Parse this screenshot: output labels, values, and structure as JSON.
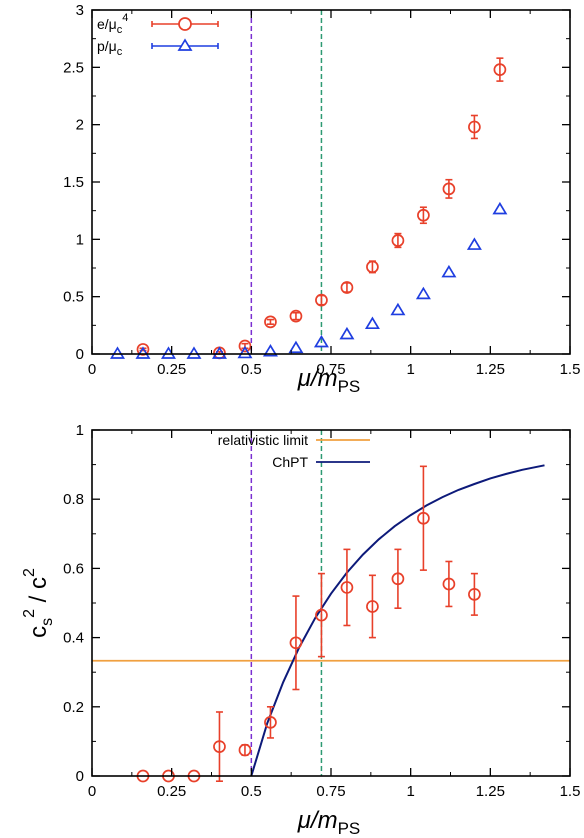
{
  "chart_data": [
    {
      "type": "scatter",
      "xlabel_main": "μ/m",
      "xlabel_sub": "PS",
      "ylabel": "",
      "xlim": [
        0,
        1.5
      ],
      "ylim": [
        0,
        3
      ],
      "xticks": [
        "0",
        "0.25",
        "0.5",
        "0.75",
        "1",
        "1.25",
        "1.5"
      ],
      "yticks": [
        "0",
        "0.5",
        "1",
        "1.5",
        "2",
        "2.5",
        "3"
      ],
      "vlines": [
        {
          "x": 0.5,
          "color": "#7b2fd1"
        },
        {
          "x": 0.72,
          "color": "#2e9a73"
        }
      ],
      "legend_position": "top-left",
      "series": [
        {
          "name": "e/μc4",
          "legend_main": "e/μ",
          "legend_sub": "c",
          "legend_sup": "4",
          "marker": "circle",
          "color": "#e8402a",
          "x": [
            0.16,
            0.4,
            0.48,
            0.56,
            0.64,
            0.72,
            0.8,
            0.88,
            0.96,
            1.04,
            1.12,
            1.2,
            1.28
          ],
          "y": [
            0.04,
            0.01,
            0.07,
            0.28,
            0.33,
            0.47,
            0.58,
            0.76,
            0.99,
            1.21,
            1.44,
            1.98,
            2.48
          ],
          "yerr": [
            0.01,
            0.01,
            0.02,
            0.02,
            0.03,
            0.04,
            0.04,
            0.05,
            0.06,
            0.07,
            0.08,
            0.1,
            0.1
          ]
        },
        {
          "name": "p/μc",
          "legend_main": "p/μ",
          "legend_sub": "c",
          "legend_sup": "",
          "marker": "triangle",
          "color": "#1f3ee0",
          "x": [
            0.08,
            0.16,
            0.24,
            0.32,
            0.4,
            0.48,
            0.56,
            0.64,
            0.72,
            0.8,
            0.88,
            0.96,
            1.04,
            1.12,
            1.2,
            1.28
          ],
          "y": [
            0.0,
            0.0,
            0.0,
            0.0,
            0.0,
            0.005,
            0.02,
            0.05,
            0.1,
            0.17,
            0.26,
            0.38,
            0.52,
            0.71,
            0.95,
            1.26
          ],
          "yerr": [
            0,
            0,
            0,
            0,
            0,
            0,
            0,
            0,
            0,
            0,
            0,
            0,
            0,
            0,
            0,
            0
          ]
        }
      ]
    },
    {
      "type": "scatter",
      "xlabel_main": "μ/m",
      "xlabel_sub": "PS",
      "ylabel_main": "c",
      "ylabel_sub": "s",
      "ylabel_rest": " / c",
      "xlim": [
        0,
        1.5
      ],
      "ylim": [
        0,
        1
      ],
      "xticks": [
        "0",
        "0.25",
        "0.5",
        "0.75",
        "1",
        "1.25",
        "1.5"
      ],
      "yticks": [
        "0",
        "0.2",
        "0.4",
        "0.6",
        "0.8",
        "1"
      ],
      "vlines": [
        {
          "x": 0.5,
          "color": "#7b2fd1"
        },
        {
          "x": 0.72,
          "color": "#2e9a73"
        }
      ],
      "legend_position": "top-left",
      "relativistic_limit": {
        "name": "relativistic limit",
        "y": 0.333,
        "color": "#f0a040"
      },
      "chpt": {
        "name": "ChPT",
        "color": "#0d1a7a",
        "x": [
          0.5,
          0.55,
          0.6,
          0.65,
          0.7,
          0.75,
          0.8,
          0.85,
          0.9,
          0.95,
          1.0,
          1.05,
          1.1,
          1.15,
          1.2,
          1.25,
          1.3,
          1.35,
          1.42
        ],
        "y": [
          0.0,
          0.153,
          0.271,
          0.371,
          0.456,
          0.527,
          0.588,
          0.64,
          0.684,
          0.722,
          0.754,
          0.782,
          0.806,
          0.827,
          0.844,
          0.86,
          0.873,
          0.885,
          0.898
        ]
      },
      "series": [
        {
          "name": "cs2",
          "marker": "circle",
          "color": "#e8402a",
          "x": [
            0.16,
            0.24,
            0.32,
            0.4,
            0.48,
            0.56,
            0.64,
            0.72,
            0.8,
            0.88,
            0.96,
            1.04,
            1.12,
            1.2
          ],
          "y": [
            0.0,
            0.0,
            0.0,
            0.085,
            0.075,
            0.155,
            0.385,
            0.465,
            0.545,
            0.49,
            0.57,
            0.745,
            0.555,
            0.525
          ],
          "yerr": [
            0.0,
            0.0,
            0.0,
            0.1,
            0.015,
            0.045,
            0.135,
            0.12,
            0.11,
            0.09,
            0.085,
            0.15,
            0.065,
            0.06
          ]
        }
      ]
    }
  ]
}
